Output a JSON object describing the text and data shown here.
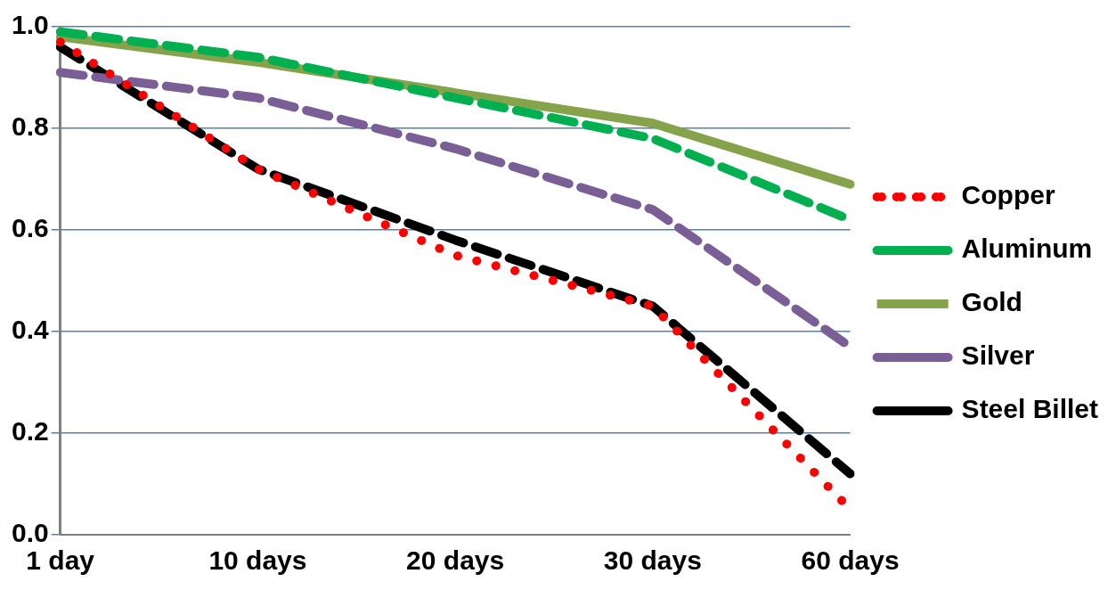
{
  "chart_data": {
    "type": "line",
    "categories": [
      "1 day",
      "10 days",
      "20 days",
      "30 days",
      "60 days"
    ],
    "series": [
      {
        "name": "Copper",
        "color": "#ff0000",
        "line_style": "dotted",
        "values": [
          0.97,
          0.72,
          0.55,
          0.45,
          0.05
        ]
      },
      {
        "name": "Aluminum",
        "color": "#00b050",
        "line_style": "dashed",
        "values": [
          0.99,
          0.94,
          0.86,
          0.78,
          0.62
        ]
      },
      {
        "name": "Gold",
        "color": "#86a34b",
        "line_style": "solid",
        "values": [
          0.98,
          0.93,
          0.87,
          0.81,
          0.69
        ]
      },
      {
        "name": "Silver",
        "color": "#7a5e96",
        "line_style": "dashed",
        "values": [
          0.91,
          0.86,
          0.76,
          0.64,
          0.37
        ]
      },
      {
        "name": "Steel Billet",
        "color": "#000000",
        "line_style": "dashed",
        "values": [
          0.96,
          0.72,
          0.58,
          0.45,
          0.12
        ]
      }
    ],
    "ylim": [
      0,
      1
    ],
    "yticks": [
      {
        "value": 0,
        "label": "0.0"
      },
      {
        "value": 0.2,
        "label": "0.2"
      },
      {
        "value": 0.4,
        "label": "0.4"
      },
      {
        "value": 0.6,
        "label": "0.6"
      },
      {
        "value": 0.8,
        "label": "0.8"
      },
      {
        "value": 1,
        "label": "1.0"
      }
    ],
    "grid": "y",
    "legend": "right",
    "marker": "none"
  }
}
